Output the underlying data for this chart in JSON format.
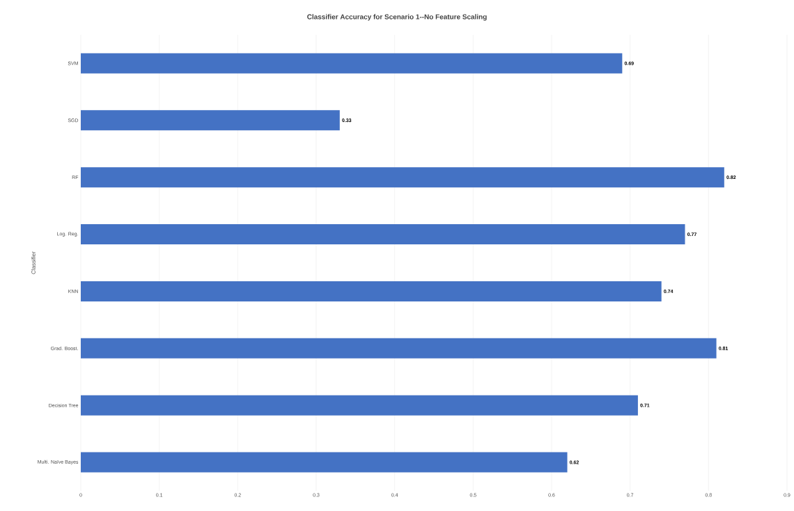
{
  "chart_data": {
    "type": "bar",
    "orientation": "horizontal",
    "title": "Classifier Accuracy for Scenario 1--No Feature Scaling",
    "ylabel": "Classifier",
    "categories": [
      "SVM",
      "SGD",
      "RF",
      "Log. Reg.",
      "KNN",
      "Grad. Boost.",
      "Decision Tree",
      "Multi. Naïve Bayes"
    ],
    "values": [
      0.69,
      0.33,
      0.82,
      0.77,
      0.74,
      0.81,
      0.71,
      0.62
    ],
    "color": "#4472c4",
    "xlim": [
      0,
      0.9
    ],
    "xticks": [
      0,
      0.1,
      0.2,
      0.3,
      0.4,
      0.5,
      0.6,
      0.7,
      0.8,
      0.9
    ],
    "grid": "x",
    "data_labels": true
  }
}
